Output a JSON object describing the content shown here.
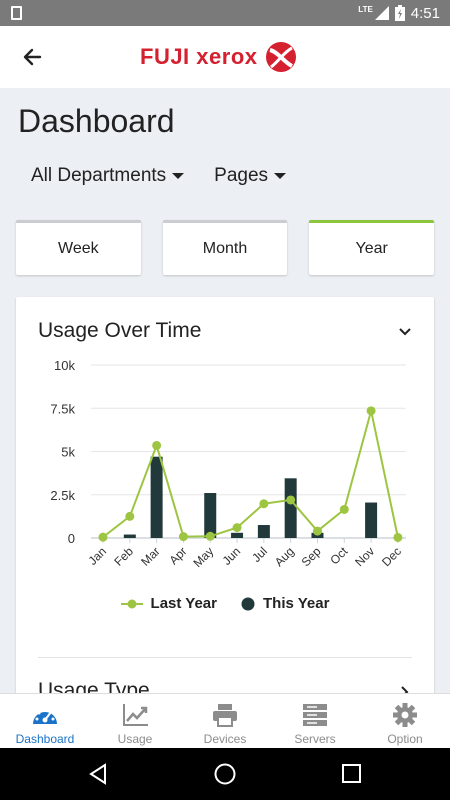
{
  "status_bar": {
    "network": "LTE",
    "time": "4:51"
  },
  "app_bar": {
    "logo_text": "FUJI xerox"
  },
  "page_title": "Dashboard",
  "filters": [
    {
      "label": "All Departments"
    },
    {
      "label": "Pages"
    }
  ],
  "segments": [
    {
      "label": "Week",
      "active": false
    },
    {
      "label": "Month",
      "active": false
    },
    {
      "label": "Year",
      "active": true
    }
  ],
  "card": {
    "title": "Usage Over Time",
    "next_title": "Usage Type"
  },
  "chart_data": {
    "type": "bar",
    "categories": [
      "Jan",
      "Feb",
      "Mar",
      "Apr",
      "May",
      "Jun",
      "Jul",
      "Aug",
      "Sep",
      "Oct",
      "Nov",
      "Dec"
    ],
    "y_ticks": [
      "0",
      "2.5k",
      "5k",
      "7.5k",
      "10k"
    ],
    "ylim": [
      0,
      10000
    ],
    "series": [
      {
        "name": "Last Year",
        "kind": "line",
        "color": "#9dc542",
        "values": [
          50,
          1250,
          5350,
          80,
          100,
          600,
          1980,
          2200,
          400,
          1650,
          7350,
          30
        ]
      },
      {
        "name": "This Year",
        "kind": "bar",
        "color": "#21393b",
        "values": [
          0,
          200,
          4700,
          0,
          2600,
          300,
          750,
          3450,
          300,
          0,
          2050,
          0
        ]
      }
    ],
    "grid": true,
    "legend_position": "bottom"
  },
  "bottom_nav": [
    {
      "label": "Dashboard",
      "icon": "dashboard-gauge-icon",
      "active": true
    },
    {
      "label": "Usage",
      "icon": "trend-chart-icon",
      "active": false
    },
    {
      "label": "Devices",
      "icon": "printer-icon",
      "active": false
    },
    {
      "label": "Servers",
      "icon": "server-icon",
      "active": false
    },
    {
      "label": "Option",
      "icon": "gear-icon",
      "active": false
    }
  ],
  "colors": {
    "accent_green": "#8cc63f",
    "brand_red": "#d5202f",
    "nav_active": "#1a73c8"
  }
}
